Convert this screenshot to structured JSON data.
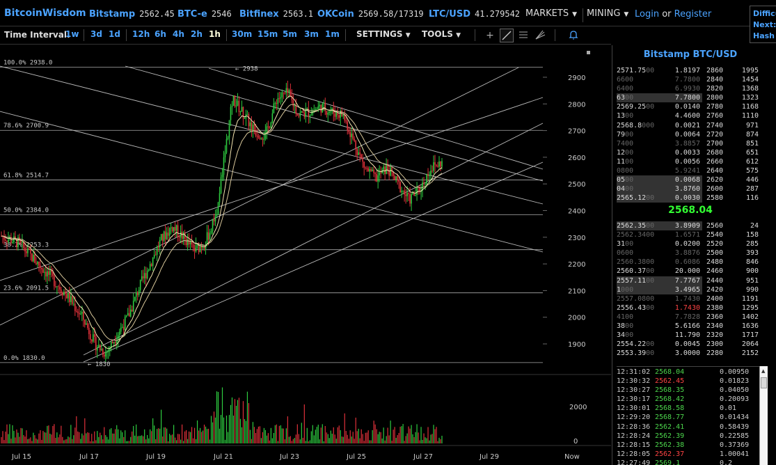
{
  "header": {
    "brand": "BitcoinWisdom",
    "tickers": [
      {
        "exchange": "Bitstamp",
        "price": "2562.45"
      },
      {
        "exchange": "BTC-e",
        "price": "2546"
      },
      {
        "exchange": "Bitfinex",
        "price": "2563.1"
      },
      {
        "exchange": "OKCoin",
        "price": "2569.58/17319"
      },
      {
        "exchange": "LTC/USD",
        "price": "41.279542"
      }
    ],
    "markets_label": "MARKETS",
    "mining_label": "MINING",
    "login_label": "Login",
    "or_label": "or",
    "register_label": "Register",
    "difficulty_lines": [
      "Difficu",
      "Next:",
      "Hash R"
    ]
  },
  "toolbar": {
    "time_interval_label": "Time Interval:",
    "intervals": [
      "1w",
      "3d",
      "1d",
      "12h",
      "6h",
      "4h",
      "2h",
      "1h",
      "30m",
      "15m",
      "5m",
      "3m",
      "1m"
    ],
    "active_interval": "1h",
    "settings_label": "SETTINGS",
    "tools_label": "TOOLS",
    "tool_icons": [
      "crosshair-icon",
      "line-icon",
      "parallel-lines-icon",
      "pitchfork-icon",
      "alert-bell-icon"
    ]
  },
  "chart_data": {
    "type": "candlestick",
    "pair": "Bitstamp BTC/USD",
    "x_labels": [
      "Jul 15",
      "Jul 17",
      "Jul 19",
      "Jul 21",
      "Jul 23",
      "Jul 25",
      "Jul 27",
      "Jul 29",
      "Now"
    ],
    "y_ticks": [
      1900,
      2000,
      2100,
      2200,
      2300,
      2400,
      2500,
      2600,
      2700,
      2800,
      2900
    ],
    "ylim": [
      1780,
      3020
    ],
    "volume_ticks": [
      "2000",
      "0"
    ],
    "fib_levels": [
      {
        "label": "100.0% 2938.0",
        "value": 2938
      },
      {
        "label": "78.6% 2700.9",
        "value": 2700.9
      },
      {
        "label": "61.8% 2514.7",
        "value": 2514.7
      },
      {
        "label": "50.0% 2384.0",
        "value": 2384
      },
      {
        "label": "38.2% 2253.3",
        "value": 2253.3
      },
      {
        "label": "23.6% 2091.5",
        "value": 2091.5
      },
      {
        "label": "0.0% 1830.0",
        "value": 1830
      }
    ],
    "annotations": [
      "← 2938",
      "← 1830"
    ],
    "price_path": [
      [
        0,
        2305
      ],
      [
        0.03,
        2280
      ],
      [
        0.06,
        2215
      ],
      [
        0.09,
        2150
      ],
      [
        0.12,
        2080
      ],
      [
        0.15,
        1990
      ],
      [
        0.17,
        1900
      ],
      [
        0.19,
        1865
      ],
      [
        0.21,
        1935
      ],
      [
        0.23,
        2000
      ],
      [
        0.25,
        2110
      ],
      [
        0.27,
        2200
      ],
      [
        0.29,
        2290
      ],
      [
        0.31,
        2340
      ],
      [
        0.33,
        2300
      ],
      [
        0.35,
        2250
      ],
      [
        0.37,
        2280
      ],
      [
        0.39,
        2380
      ],
      [
        0.405,
        2600
      ],
      [
        0.42,
        2820
      ],
      [
        0.44,
        2760
      ],
      [
        0.46,
        2700
      ],
      [
        0.48,
        2680
      ],
      [
        0.5,
        2820
      ],
      [
        0.52,
        2840
      ],
      [
        0.54,
        2760
      ],
      [
        0.56,
        2770
      ],
      [
        0.58,
        2790
      ],
      [
        0.6,
        2770
      ],
      [
        0.62,
        2760
      ],
      [
        0.64,
        2660
      ],
      [
        0.66,
        2560
      ],
      [
        0.68,
        2520
      ],
      [
        0.7,
        2560
      ],
      [
        0.72,
        2500
      ],
      [
        0.74,
        2440
      ],
      [
        0.76,
        2480
      ],
      [
        0.78,
        2560
      ],
      [
        0.8,
        2580
      ]
    ]
  },
  "panel": {
    "title": "Bitstamp BTC/USD",
    "asks": [
      {
        "price": "2571.75",
        "price_dim": "00",
        "amt": "1.8197",
        "dim": false,
        "level": "2860",
        "sum": "1995",
        "depth": 0
      },
      {
        "price": "",
        "price_dim": "6600",
        "amt": "7.7800",
        "dim": true,
        "level": "2840",
        "sum": "1454",
        "depth": 0
      },
      {
        "price": "",
        "price_dim": "6400",
        "amt": "6.9930",
        "dim": true,
        "level": "2820",
        "sum": "1368",
        "depth": 0
      },
      {
        "price": "63",
        "price_dim": "00",
        "amt": "7.7800",
        "dim": false,
        "level": "2800",
        "sum": "1323",
        "depth": 0.58
      },
      {
        "price": "2569.25",
        "price_dim": "00",
        "amt": "0.0140",
        "dim": false,
        "level": "2780",
        "sum": "1168",
        "depth": 0
      },
      {
        "price": "13",
        "price_dim": "00",
        "amt": "4.4600",
        "dim": false,
        "level": "2760",
        "sum": "1110",
        "depth": 0
      },
      {
        "price": "2568.8",
        "price_dim": "000",
        "amt": "0.0021",
        "dim": false,
        "level": "2740",
        "sum": "971",
        "depth": 0
      },
      {
        "price": "79",
        "price_dim": "00",
        "amt": "0.0064",
        "dim": false,
        "level": "2720",
        "sum": "874",
        "depth": 0
      },
      {
        "price": "",
        "price_dim": "7400",
        "amt": "3.8857",
        "dim": true,
        "level": "2700",
        "sum": "851",
        "depth": 0
      },
      {
        "price": "12",
        "price_dim": "00",
        "amt": "0.0033",
        "dim": false,
        "level": "2680",
        "sum": "651",
        "depth": 0
      },
      {
        "price": "11",
        "price_dim": "00",
        "amt": "0.0056",
        "dim": false,
        "level": "2660",
        "sum": "612",
        "depth": 0
      },
      {
        "price": "",
        "price_dim": "0800",
        "amt": "5.9241",
        "dim": true,
        "level": "2640",
        "sum": "575",
        "depth": 0
      },
      {
        "price": "05",
        "price_dim": "00",
        "amt": "0.0068",
        "dim": false,
        "level": "2620",
        "sum": "446",
        "depth": 0.58
      },
      {
        "price": "04",
        "price_dim": "00",
        "amt": "3.8760",
        "dim": false,
        "level": "2600",
        "sum": "287",
        "depth": 0.58
      },
      {
        "price": "2565.12",
        "price_dim": "00",
        "amt": "0.0030",
        "dim": false,
        "level": "2580",
        "sum": "116",
        "depth": 0.58
      }
    ],
    "last_price": "2568.04",
    "bids": [
      {
        "price": "2562.35",
        "price_dim": "00",
        "amt": "3.8909",
        "dim": false,
        "level": "2560",
        "sum": "24",
        "depth": 0.58
      },
      {
        "price": "",
        "price_dim": "2562.3400",
        "amt": "1.6571",
        "dim": true,
        "level": "2540",
        "sum": "158",
        "depth": 0
      },
      {
        "price": "31",
        "price_dim": "00",
        "amt": "0.0200",
        "dim": false,
        "level": "2520",
        "sum": "285",
        "depth": 0
      },
      {
        "price": "",
        "price_dim": "0600",
        "amt": "3.8876",
        "dim": true,
        "level": "2500",
        "sum": "393",
        "depth": 0
      },
      {
        "price": "",
        "price_dim": "2560.3800",
        "amt": "0.6086",
        "dim": true,
        "level": "2480",
        "sum": "846",
        "depth": 0
      },
      {
        "price": "2560.37",
        "price_dim": "00",
        "amt": "20.000",
        "dim": false,
        "level": "2460",
        "sum": "900",
        "depth": 0
      },
      {
        "price": "2557.11",
        "price_dim": "00",
        "amt": "7.7767",
        "dim": false,
        "level": "2440",
        "sum": "951",
        "depth": 0.58
      },
      {
        "price": "1",
        "price_dim": "000",
        "amt": "3.4965",
        "dim": false,
        "level": "2420",
        "sum": "990",
        "depth": 0.58
      },
      {
        "price": "",
        "price_dim": "2557.0800",
        "amt": "1.7430",
        "dim": true,
        "level": "2400",
        "sum": "1191",
        "depth": 0
      },
      {
        "price": "2556.43",
        "price_dim": "00",
        "amt": "1.7430",
        "dim": false,
        "amt_color": "#f44",
        "level": "2380",
        "sum": "1295",
        "depth": 0
      },
      {
        "price": "",
        "price_dim": "4100",
        "amt": "7.7828",
        "dim": true,
        "level": "2360",
        "sum": "1402",
        "depth": 0
      },
      {
        "price": "38",
        "price_dim": "00",
        "amt": "5.6166",
        "dim": false,
        "level": "2340",
        "sum": "1636",
        "depth": 0
      },
      {
        "price": "34",
        "price_dim": "00",
        "amt": "11.790",
        "dim": false,
        "level": "2320",
        "sum": "1717",
        "depth": 0
      },
      {
        "price": "2554.22",
        "price_dim": "00",
        "amt": "0.0045",
        "dim": false,
        "level": "2300",
        "sum": "2064",
        "depth": 0
      },
      {
        "price": "2553.39",
        "price_dim": "00",
        "amt": "3.0000",
        "dim": false,
        "level": "2280",
        "sum": "2152",
        "depth": 0
      }
    ],
    "trades": [
      {
        "time": "12:31:02",
        "price": "2568.04",
        "side": "buy",
        "amount": "0.00950"
      },
      {
        "time": "12:30:32",
        "price": "2562.45",
        "side": "sell",
        "amount": "0.01823"
      },
      {
        "time": "12:30:27",
        "price": "2568.35",
        "side": "buy",
        "amount": "0.04050"
      },
      {
        "time": "12:30:17",
        "price": "2568.42",
        "side": "buy",
        "amount": "0.20093"
      },
      {
        "time": "12:30:01",
        "price": "2568.58",
        "side": "buy",
        "amount": "0.01"
      },
      {
        "time": "12:29:20",
        "price": "2568.77",
        "side": "buy",
        "amount": "0.01434"
      },
      {
        "time": "12:28:36",
        "price": "2562.41",
        "side": "buy",
        "amount": "0.58439"
      },
      {
        "time": "12:28:24",
        "price": "2562.39",
        "side": "buy",
        "amount": "0.22585"
      },
      {
        "time": "12:28:15",
        "price": "2562.38",
        "side": "buy",
        "amount": "0.37369"
      },
      {
        "time": "12:28:05",
        "price": "2562.37",
        "side": "sell",
        "amount": "1.00041"
      },
      {
        "time": "12:27:49",
        "price": "2569.1",
        "side": "buy",
        "amount": "0.2"
      }
    ]
  },
  "colors": {
    "brand": "#4ba3ff",
    "bull": "#2ecc40",
    "bear": "#e0313a",
    "last_price": "#33ff33",
    "ema": "#f5e6b0"
  }
}
